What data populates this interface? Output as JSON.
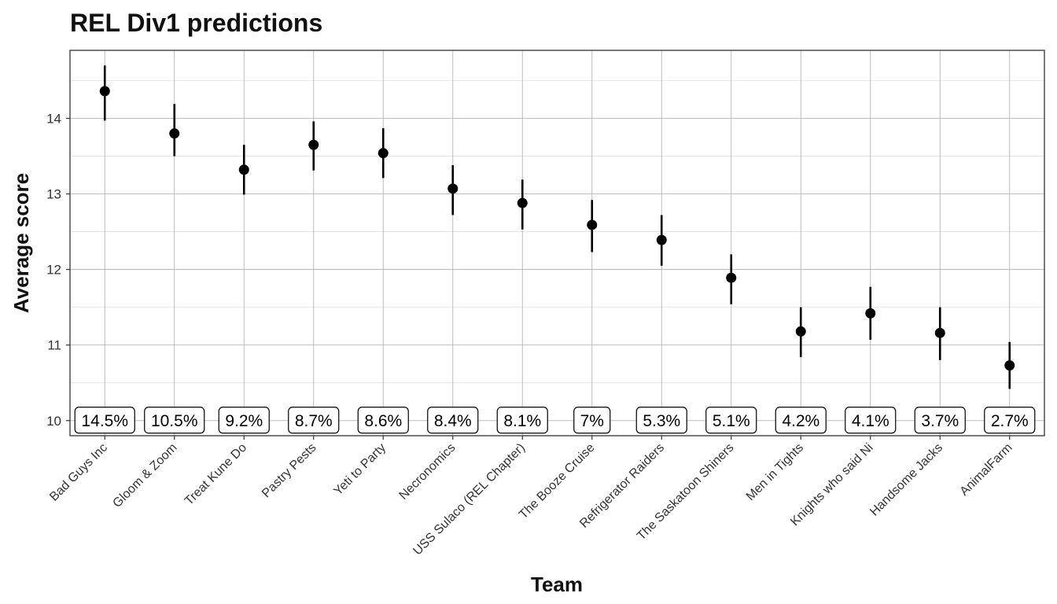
{
  "chart_data": {
    "type": "scatter",
    "title": "REL Div1 predictions",
    "xlabel": "Team",
    "ylabel": "Average score",
    "ylim": [
      9.8,
      14.9
    ],
    "y_ticks": [
      10,
      11,
      12,
      13,
      14
    ],
    "grid": true,
    "legend": "none",
    "point_color": "#000000",
    "categories": [
      "Bad Guys Inc",
      "Gloom & Zoom",
      "Treat Kune Do",
      "Pastry Pests",
      "Yeti to Party",
      "Necronomics",
      "USS Sulaco (REL Chapter)",
      "The Booze Cruise",
      "Refrigerator Raiders",
      "The Saskatoon Shiners",
      "Men in Tights",
      "Knights who said Ni",
      "Handsome Jacks",
      "AnimalFarm"
    ],
    "values": [
      14.36,
      13.8,
      13.32,
      13.65,
      13.54,
      13.07,
      12.88,
      12.59,
      12.39,
      11.89,
      11.18,
      11.42,
      11.16,
      10.73
    ],
    "lower": [
      13.97,
      13.5,
      12.99,
      13.31,
      13.21,
      12.72,
      12.53,
      12.23,
      12.05,
      11.54,
      10.84,
      11.07,
      10.8,
      10.42
    ],
    "upper": [
      14.7,
      14.19,
      13.65,
      13.96,
      13.87,
      13.38,
      13.19,
      12.92,
      12.72,
      12.2,
      11.5,
      11.77,
      11.5,
      11.04
    ],
    "labels": [
      "14.5%",
      "10.5%",
      "9.2%",
      "8.7%",
      "8.6%",
      "8.4%",
      "8.1%",
      "7%",
      "5.3%",
      "5.1%",
      "4.2%",
      "4.1%",
      "3.7%",
      "2.7%"
    ]
  }
}
